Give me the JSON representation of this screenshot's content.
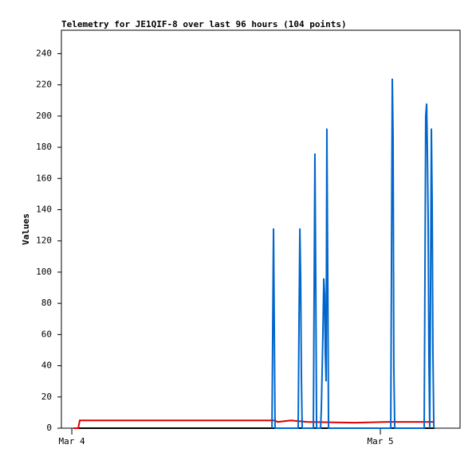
{
  "chart_data": {
    "type": "line",
    "title": "Telemetry for JE1QIF-8 over last 96 hours (104 points)",
    "ylabel": "Values",
    "xlim": [
      -0.81,
      30.2
    ],
    "xticks": [
      {
        "value": 0,
        "label": "Mar 4"
      },
      {
        "value": 24,
        "label": "Mar 5"
      }
    ],
    "ylim": [
      0,
      255
    ],
    "yticks": [
      0,
      20,
      40,
      60,
      80,
      100,
      120,
      140,
      160,
      180,
      200,
      220,
      240
    ],
    "series": [
      {
        "color": "#000000",
        "x": [
          0.12,
          28.22
        ],
        "values": [
          0,
          0
        ]
      },
      {
        "color": "#dd0000",
        "x": [
          0.12,
          0.5,
          0.62,
          15.81,
          16.0,
          17.05,
          18.29,
          22.02,
          24.5,
          28.22
        ],
        "values": [
          0,
          0,
          5,
          5,
          4,
          5,
          4,
          3.5,
          4,
          4
        ]
      },
      {
        "color": "#0066cc",
        "x": [
          15.57,
          15.63,
          15.69,
          15.75,
          15.81,
          17.61,
          17.67,
          17.74,
          17.8,
          17.86,
          17.92,
          18.79,
          18.85,
          18.91,
          18.98,
          19.04,
          19.35,
          19.41,
          19.47,
          19.53,
          19.6,
          19.66,
          19.72,
          19.78,
          19.84,
          19.91,
          19.97,
          24.81,
          24.87,
          24.93,
          24.99,
          25.05,
          25.12,
          27.41,
          27.47,
          27.53,
          27.6,
          27.66,
          27.72,
          27.78,
          27.84,
          27.91,
          27.97,
          28.03,
          28.09,
          28.16
        ],
        "values": [
          0,
          64,
          128,
          64,
          0,
          0,
          64,
          128,
          96,
          32,
          0,
          0,
          88,
          176,
          88,
          0,
          0,
          12,
          36,
          60,
          96,
          86,
          48,
          30,
          192,
          96,
          0,
          0,
          112,
          224,
          186,
          38,
          0,
          0,
          96,
          200,
          208,
          176,
          132,
          44,
          0,
          96,
          192,
          144,
          48,
          0
        ]
      }
    ]
  }
}
